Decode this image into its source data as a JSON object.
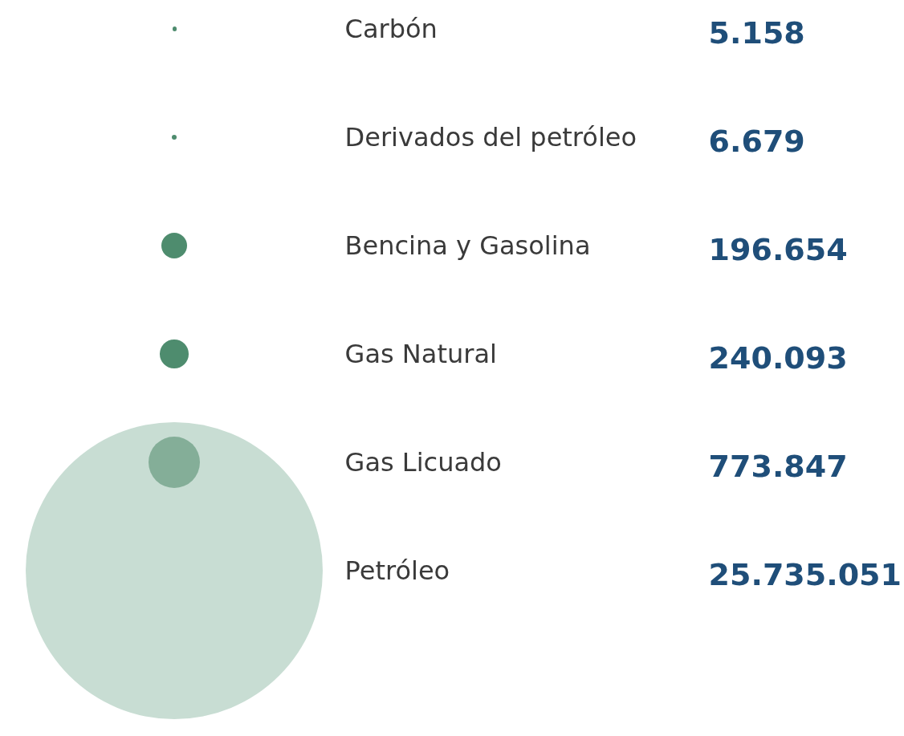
{
  "chart_data": {
    "type": "other",
    "categories": [
      "Carbón",
      "Derivados del petróleo",
      "Bencina y Gasolina",
      "Gas Natural",
      "Gas Licuado",
      "Petróleo"
    ],
    "values": [
      5158,
      6679,
      196654,
      240093,
      773847,
      25735051
    ],
    "value_labels": [
      "5.158",
      "6.679",
      "196.654",
      "240.093",
      "773.847",
      "25.735.051"
    ],
    "colors": [
      "#4e8c6e",
      "#4e8c6e",
      "#4e8c6e",
      "#4e8c6e",
      "#84ae98",
      "#c8ddd3"
    ]
  }
}
